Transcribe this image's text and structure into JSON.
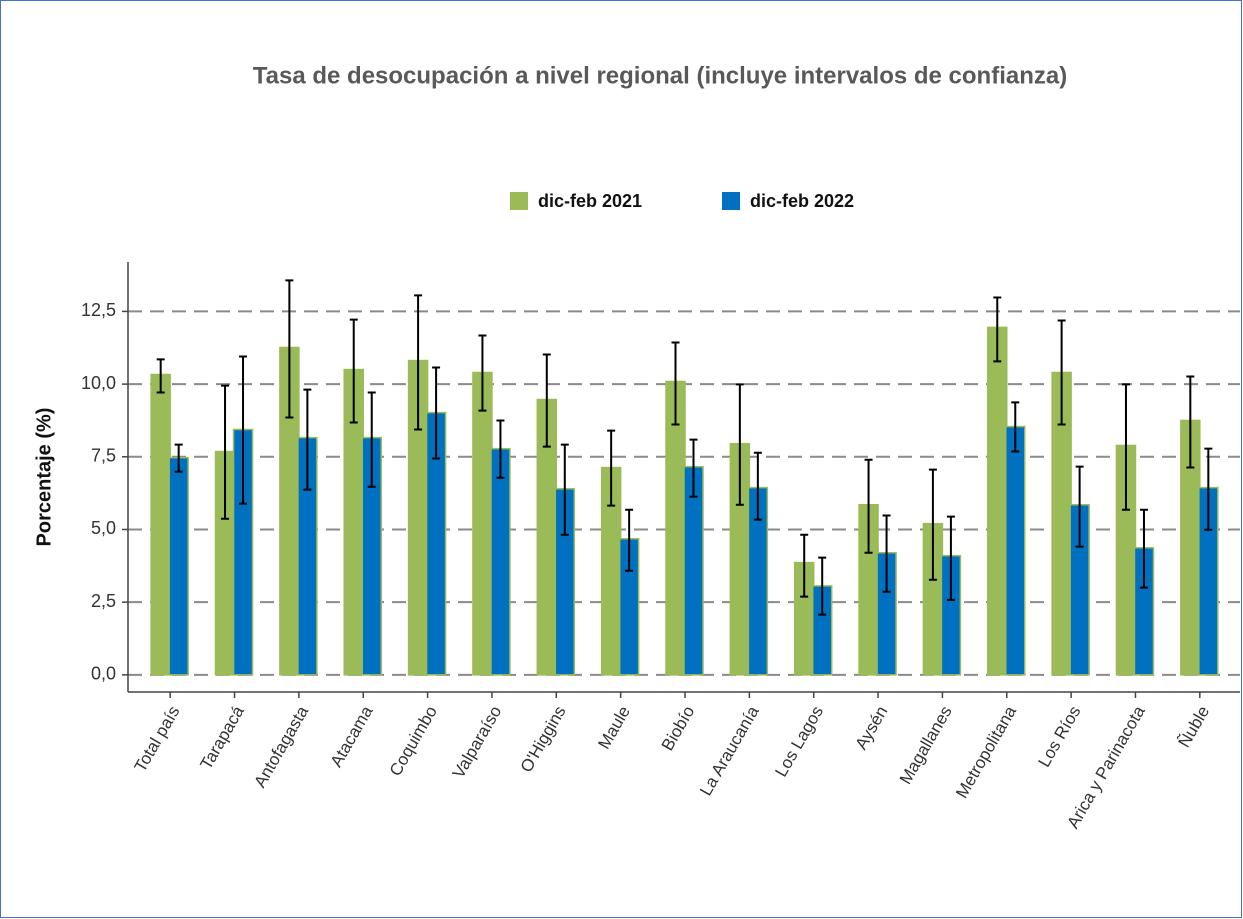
{
  "chart_data": {
    "type": "bar",
    "title": "Tasa de desocupación a nivel regional (incluye intervalos de confianza)",
    "y_label": "Porcentaje (%)",
    "categories": [
      "Total país",
      "Tarapacá",
      "Antofagasta",
      "Atacama",
      "Coquimbo",
      "Valparaíso",
      "O'Higgins",
      "Maule",
      "Biobío",
      "La Araucanía",
      "Los Lagos",
      "Aysén",
      "Magallanes",
      "Metropolitana",
      "Los Ríos",
      "Arica y Parinacota",
      "Ñuble"
    ],
    "series": [
      {
        "name": "dic-feb 2021",
        "color": "#9bbb59",
        "values": [
          10.33,
          7.68,
          11.26,
          10.5,
          10.81,
          10.4,
          9.47,
          7.13,
          10.09,
          7.95,
          3.86,
          5.85,
          5.2,
          11.95,
          10.4,
          7.89,
          8.75
        ],
        "ci_low": [
          9.71,
          5.37,
          8.85,
          8.68,
          8.44,
          9.09,
          7.85,
          5.82,
          8.61,
          5.85,
          2.69,
          4.2,
          3.27,
          10.78,
          8.61,
          5.68,
          7.13
        ],
        "ci_high": [
          10.85,
          9.95,
          13.57,
          12.22,
          13.05,
          11.67,
          11.02,
          8.4,
          11.43,
          9.99,
          4.82,
          7.4,
          7.06,
          12.98,
          12.19,
          9.99,
          10.26
        ]
      },
      {
        "name": "dic-feb 2022",
        "color": "#0070c0",
        "values": [
          7.47,
          8.44,
          8.16,
          8.16,
          9.02,
          7.78,
          6.4,
          4.68,
          7.16,
          6.44,
          3.06,
          4.2,
          4.1,
          8.54,
          5.85,
          4.37,
          6.44
        ],
        "ci_low": [
          6.99,
          5.89,
          6.37,
          6.47,
          7.44,
          6.78,
          4.82,
          3.58,
          6.13,
          5.34,
          2.07,
          2.86,
          2.58,
          7.68,
          4.41,
          3.0,
          4.99
        ],
        "ci_high": [
          7.92,
          10.95,
          9.81,
          9.71,
          10.57,
          8.75,
          7.92,
          5.68,
          8.09,
          7.64,
          4.03,
          5.48,
          5.44,
          9.37,
          7.16,
          5.68,
          7.78
        ]
      }
    ],
    "ylim": [
      -0.59,
      14.2
    ],
    "yticks": [
      {
        "value": 0,
        "label": "0,0"
      },
      {
        "value": 2.5,
        "label": "2,5"
      },
      {
        "value": 5,
        "label": "5,0"
      },
      {
        "value": 7.5,
        "label": "7,5"
      },
      {
        "value": 10,
        "label": "10,0"
      },
      {
        "value": 12.5,
        "label": "12,5"
      }
    ],
    "grid": true,
    "legend": "top"
  }
}
